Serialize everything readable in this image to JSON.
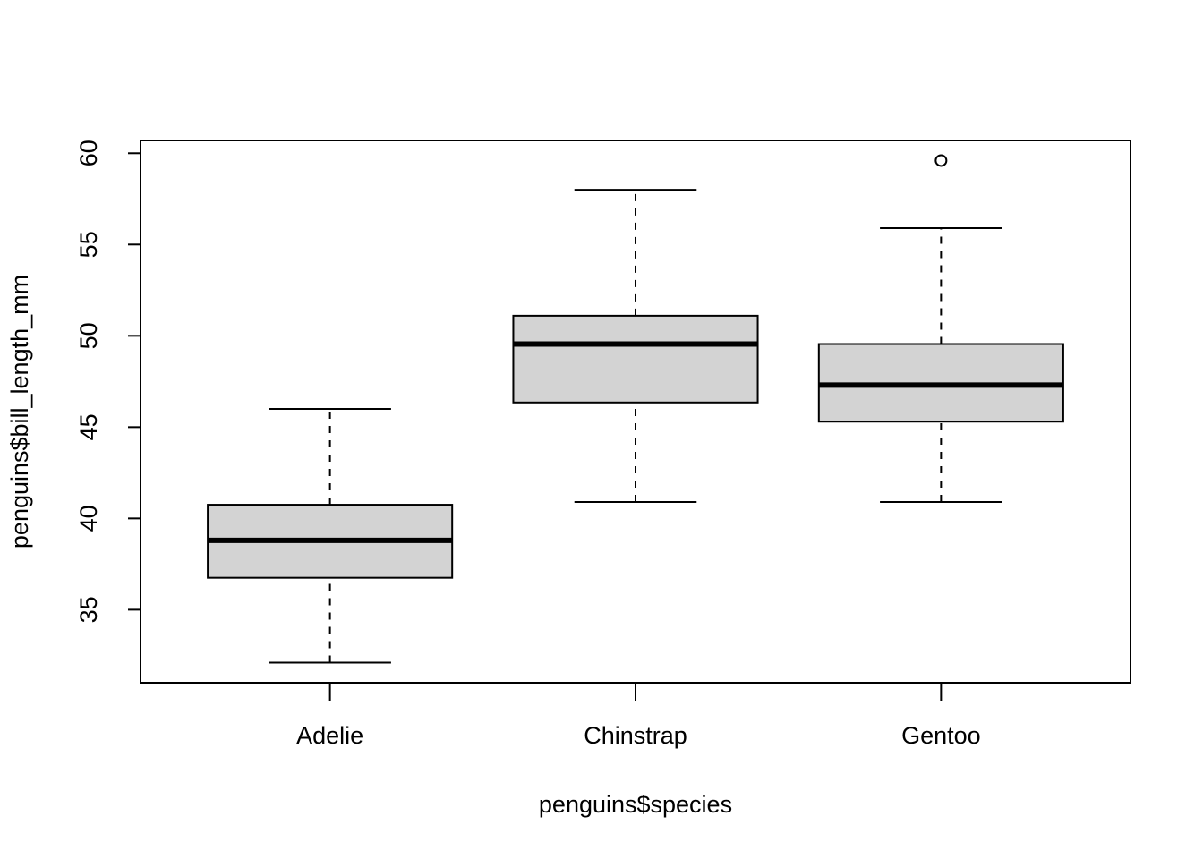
{
  "chart_data": {
    "type": "box",
    "x_label": "penguins$species",
    "y_label": "penguins$bill_length_mm",
    "categories": [
      "Adelie",
      "Chinstrap",
      "Gentoo"
    ],
    "color": "#d3d3d3",
    "boxes": [
      {
        "min": 32.1,
        "q1": 36.75,
        "median": 38.8,
        "q3": 40.75,
        "max": 46.0,
        "outliers": []
      },
      {
        "min": 40.9,
        "q1": 46.35,
        "median": 49.55,
        "q3": 51.1,
        "max": 58.0,
        "outliers": []
      },
      {
        "min": 40.9,
        "q1": 45.3,
        "median": 47.3,
        "q3": 49.55,
        "max": 55.9,
        "outliers": [
          59.6
        ]
      }
    ],
    "ylim": [
      31.0,
      60.7
    ],
    "yticks": [
      35,
      40,
      45,
      50,
      55,
      60
    ]
  }
}
